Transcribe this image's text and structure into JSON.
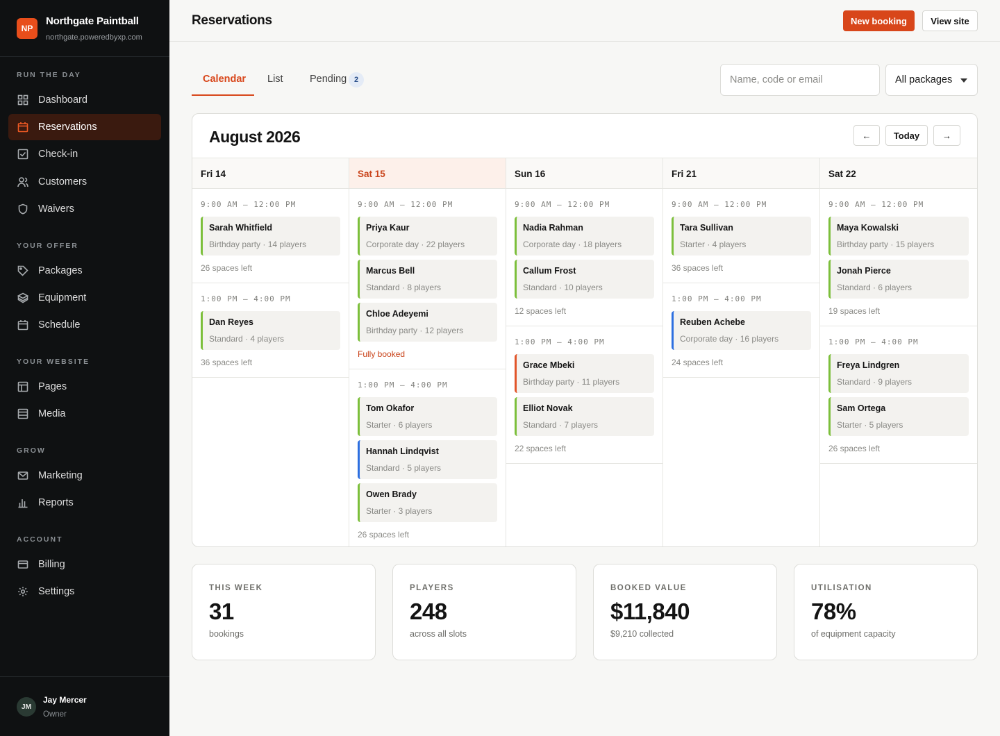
{
  "brand": {
    "initials": "NP",
    "name": "Northgate Paintball",
    "url": "northgate.poweredbyxp.com"
  },
  "nav": {
    "sections": [
      {
        "label": "RUN THE DAY"
      },
      {
        "label": "YOUR OFFER"
      },
      {
        "label": "YOUR WEBSITE"
      },
      {
        "label": "GROW"
      },
      {
        "label": "ACCOUNT"
      }
    ],
    "items": [
      {
        "label": "Dashboard",
        "icon": "grid-icon"
      },
      {
        "label": "Reservations",
        "icon": "calendar-icon",
        "active": true
      },
      {
        "label": "Check-in",
        "icon": "checkbox-icon"
      },
      {
        "label": "Customers",
        "icon": "users-icon"
      },
      {
        "label": "Waivers",
        "icon": "shield-icon"
      },
      {
        "label": "Packages",
        "icon": "tag-icon"
      },
      {
        "label": "Equipment",
        "icon": "layers-icon"
      },
      {
        "label": "Schedule",
        "icon": "calendar-icon"
      },
      {
        "label": "Pages",
        "icon": "layout-icon"
      },
      {
        "label": "Media",
        "icon": "media-icon"
      },
      {
        "label": "Marketing",
        "icon": "mail-icon"
      },
      {
        "label": "Reports",
        "icon": "bar-chart-icon"
      },
      {
        "label": "Billing",
        "icon": "card-icon"
      },
      {
        "label": "Settings",
        "icon": "gear-icon"
      }
    ]
  },
  "user": {
    "initials": "JM",
    "name": "Jay Mercer",
    "role": "Owner"
  },
  "header": {
    "title": "Reservations",
    "new_booking": "New booking",
    "view_site": "View site"
  },
  "tabs": [
    {
      "label": "Calendar",
      "active": true
    },
    {
      "label": "List"
    },
    {
      "label": "Pending",
      "count": "2"
    }
  ],
  "search": {
    "placeholder": "Name, code or email",
    "value": ""
  },
  "filter": {
    "selected": "All packages"
  },
  "calendar": {
    "month": "August 2026",
    "prev": "←",
    "today": "Today",
    "next": "→",
    "days": [
      {
        "label": "Fri 14",
        "today": false,
        "slots": [
          {
            "time": "9:00 AM – 12:00 PM",
            "bookings": [
              {
                "name": "Sarah Whitfield",
                "meta": "Birthday party · 14 players",
                "color": "#7cbf3b"
              }
            ],
            "spaces": "26 spaces left"
          },
          {
            "time": "1:00 PM – 4:00 PM",
            "bookings": [
              {
                "name": "Dan Reyes",
                "meta": "Standard · 4 players",
                "color": "#7cbf3b"
              }
            ],
            "spaces": "36 spaces left"
          }
        ]
      },
      {
        "label": "Sat 15",
        "today": true,
        "slots": [
          {
            "time": "9:00 AM – 12:00 PM",
            "bookings": [
              {
                "name": "Priya Kaur",
                "meta": "Corporate day · 22 players",
                "color": "#7cbf3b"
              },
              {
                "name": "Marcus Bell",
                "meta": "Standard · 8 players",
                "color": "#7cbf3b"
              },
              {
                "name": "Chloe Adeyemi",
                "meta": "Birthday party · 12 players",
                "color": "#7cbf3b"
              }
            ],
            "spaces": "Fully booked",
            "full": true
          },
          {
            "time": "1:00 PM – 4:00 PM",
            "bookings": [
              {
                "name": "Tom Okafor",
                "meta": "Starter · 6 players",
                "color": "#7cbf3b"
              },
              {
                "name": "Hannah Lindqvist",
                "meta": "Standard · 5 players",
                "color": "#2d6fe0"
              },
              {
                "name": "Owen Brady",
                "meta": "Starter · 3 players",
                "color": "#7cbf3b"
              }
            ],
            "spaces": "26 spaces left"
          }
        ]
      },
      {
        "label": "Sun 16",
        "today": false,
        "slots": [
          {
            "time": "9:00 AM – 12:00 PM",
            "bookings": [
              {
                "name": "Nadia Rahman",
                "meta": "Corporate day · 18 players",
                "color": "#7cbf3b"
              },
              {
                "name": "Callum Frost",
                "meta": "Standard · 10 players",
                "color": "#7cbf3b"
              }
            ],
            "spaces": "12 spaces left"
          },
          {
            "time": "1:00 PM – 4:00 PM",
            "bookings": [
              {
                "name": "Grace Mbeki",
                "meta": "Birthday party · 11 players",
                "color": "#e1552a"
              },
              {
                "name": "Elliot Novak",
                "meta": "Standard · 7 players",
                "color": "#7cbf3b"
              }
            ],
            "spaces": "22 spaces left"
          }
        ]
      },
      {
        "label": "Fri 21",
        "today": false,
        "slots": [
          {
            "time": "9:00 AM – 12:00 PM",
            "bookings": [
              {
                "name": "Tara Sullivan",
                "meta": "Starter · 4 players",
                "color": "#7cbf3b"
              }
            ],
            "spaces": "36 spaces left"
          },
          {
            "time": "1:00 PM – 4:00 PM",
            "bookings": [
              {
                "name": "Reuben Achebe",
                "meta": "Corporate day · 16 players",
                "color": "#2d6fe0"
              }
            ],
            "spaces": "24 spaces left"
          }
        ]
      },
      {
        "label": "Sat 22",
        "today": false,
        "slots": [
          {
            "time": "9:00 AM – 12:00 PM",
            "bookings": [
              {
                "name": "Maya Kowalski",
                "meta": "Birthday party · 15 players",
                "color": "#7cbf3b"
              },
              {
                "name": "Jonah Pierce",
                "meta": "Standard · 6 players",
                "color": "#7cbf3b"
              }
            ],
            "spaces": "19 spaces left"
          },
          {
            "time": "1:00 PM – 4:00 PM",
            "bookings": [
              {
                "name": "Freya Lindgren",
                "meta": "Standard · 9 players",
                "color": "#7cbf3b"
              },
              {
                "name": "Sam Ortega",
                "meta": "Starter · 5 players",
                "color": "#7cbf3b"
              }
            ],
            "spaces": "26 spaces left"
          }
        ]
      }
    ]
  },
  "stats": [
    {
      "label": "THIS WEEK",
      "value": "31",
      "sub": "bookings"
    },
    {
      "label": "PLAYERS",
      "value": "248",
      "sub": "across all slots"
    },
    {
      "label": "BOOKED VALUE",
      "value": "$11,840",
      "sub": "$9,210 collected"
    },
    {
      "label": "UTILISATION",
      "value": "78%",
      "sub": "of equipment capacity"
    }
  ]
}
